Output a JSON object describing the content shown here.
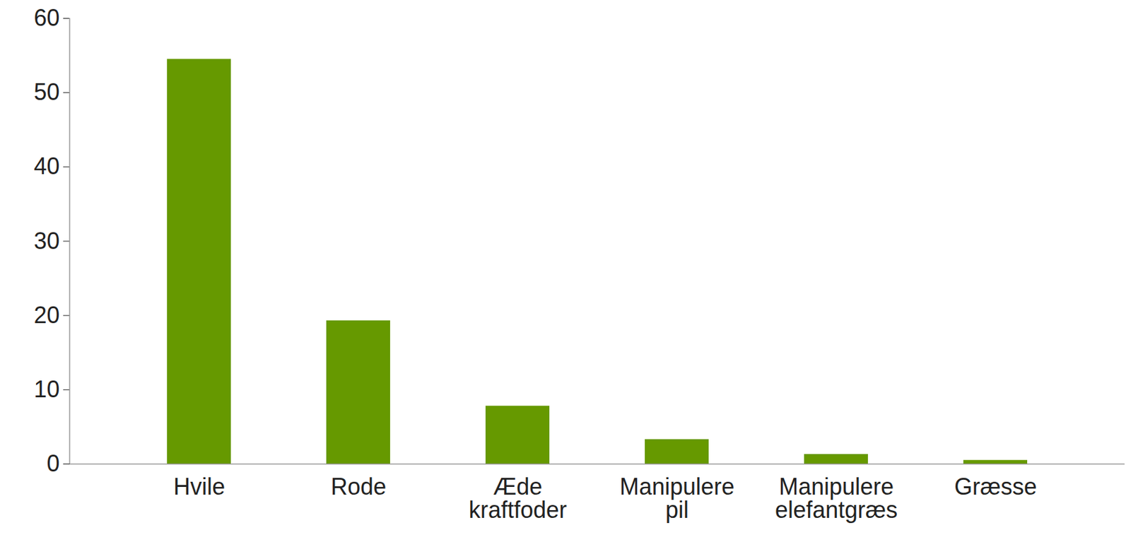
{
  "chart_data": {
    "type": "bar",
    "categories": [
      "Hvile",
      "Rode",
      "Æde kraftfoder",
      "Manipulere pil",
      "Manipulere elefantgræs",
      "Græsse"
    ],
    "values": [
      54.5,
      19.3,
      7.8,
      3.3,
      1.3,
      0.5
    ],
    "color": "#669900",
    "ylim": [
      0,
      60
    ],
    "yticks": [
      0,
      10,
      20,
      30,
      40,
      50,
      60
    ],
    "grid": false
  }
}
